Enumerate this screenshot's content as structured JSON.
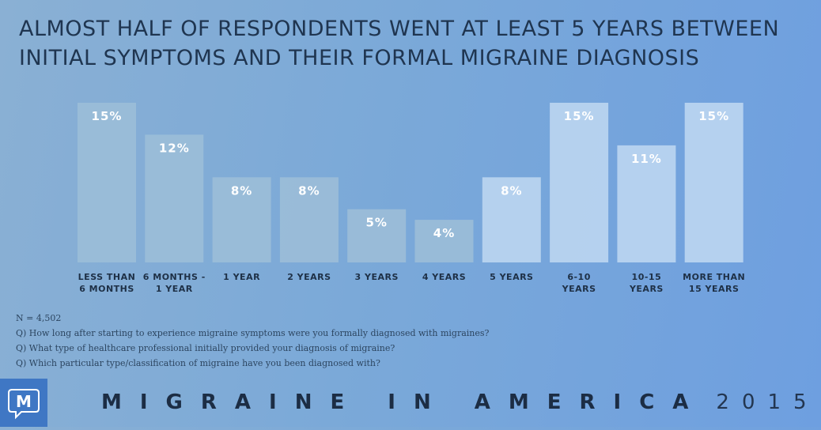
{
  "title_line1": "ALMOST HALF OF RESPONDENTS WENT AT LEAST 5 YEARS BETWEEN",
  "title_line2": "INITIAL SYMPTOMS AND THEIR FORMAL MIGRAINE DIAGNOSIS",
  "chart_data": {
    "type": "bar",
    "categories": [
      [
        "LESS THAN",
        "6 MONTHS"
      ],
      [
        "6 MONTHS -",
        "1 YEAR"
      ],
      [
        "1 YEAR"
      ],
      [
        "2 YEARS"
      ],
      [
        "3 YEARS"
      ],
      [
        "4 YEARS"
      ],
      [
        "5 YEARS"
      ],
      [
        "6-10",
        "YEARS"
      ],
      [
        "10-15",
        "YEARS"
      ],
      [
        "MORE THAN",
        "15 YEARS"
      ]
    ],
    "values": [
      15,
      12,
      8,
      8,
      5,
      4,
      8,
      15,
      11,
      15
    ],
    "value_labels": [
      "15%",
      "12%",
      "8%",
      "8%",
      "5%",
      "4%",
      "8%",
      "15%",
      "11%",
      "15%"
    ],
    "ylim": [
      0,
      15
    ],
    "bar_colors": [
      "#9bbdd8",
      "#9bbdd8",
      "#9bbdd8",
      "#9bbdd8",
      "#9bbdd8",
      "#9bbdd8",
      "#bbd5f0",
      "#bbd5f0",
      "#bbd5f0",
      "#bbd5f0"
    ],
    "grid": false
  },
  "notes": [
    "N = 4,502",
    "Q) How long after starting to experience migraine symptoms were you formally diagnosed with migraines?",
    "Q) What type of healthcare professional initially provided your diagnosis of migraine?",
    "Q) Which particular type/classification of migraine have you been diagnosed with?"
  ],
  "logo_letter": "M",
  "footer": {
    "brand": "MIGRAINE IN AMERICA",
    "year": "2015"
  },
  "colors": {
    "background": "#7ba9d8",
    "title": "#1f3550",
    "logo": "#3f77c4"
  }
}
